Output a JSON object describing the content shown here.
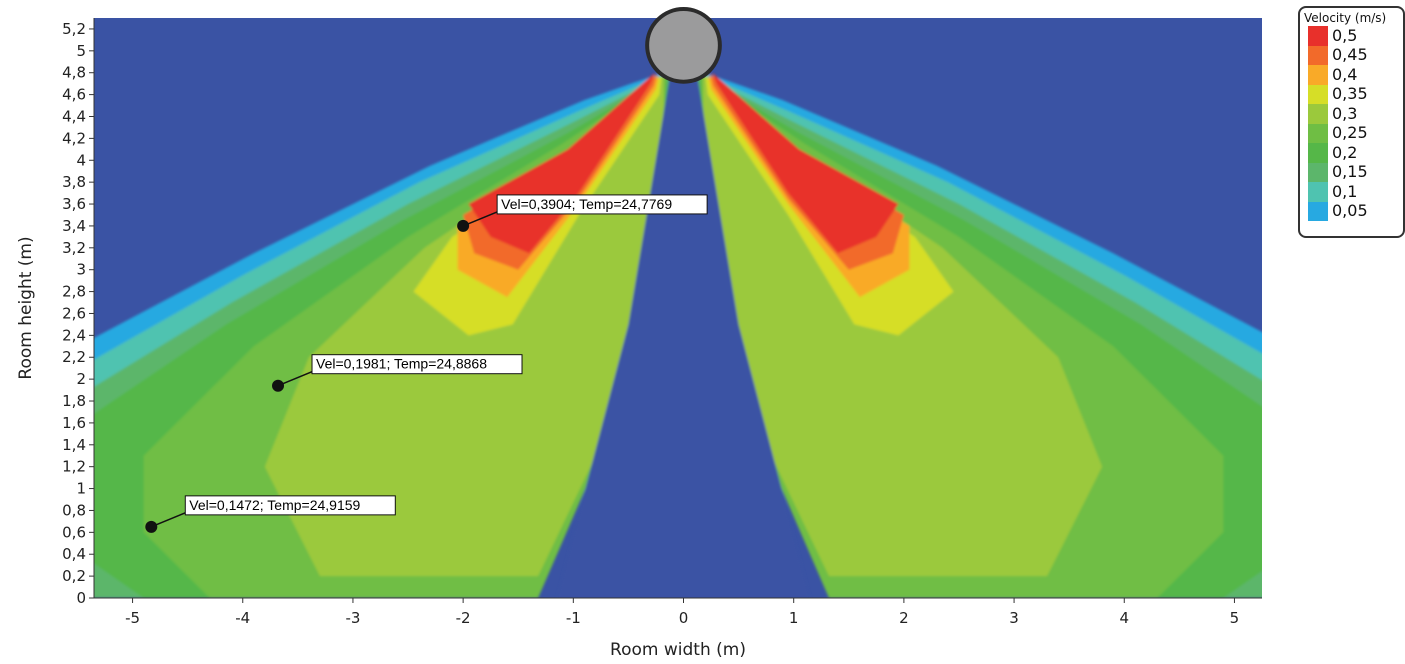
{
  "chart_data": {
    "type": "heatmap",
    "title": "",
    "xlabel": "Room width (m)",
    "ylabel": "Room height (m)",
    "xlim": [
      -5.35,
      5.25
    ],
    "ylim": [
      0,
      5.3
    ],
    "x_ticks": [
      "-5",
      "-4",
      "-3",
      "-2",
      "-1",
      "0",
      "1",
      "2",
      "3",
      "4",
      "5"
    ],
    "y_ticks": [
      "0",
      "0,2",
      "0,4",
      "0,6",
      "0,8",
      "1",
      "1,2",
      "1,4",
      "1,6",
      "1,8",
      "2",
      "2,2",
      "2,4",
      "2,6",
      "2,8",
      "3",
      "3,2",
      "3,4",
      "3,6",
      "3,8",
      "4",
      "4,2",
      "4,4",
      "4,6",
      "4,8",
      "5",
      "5,2"
    ],
    "field_quantity": "velocity",
    "field_units": "m/s",
    "source": {
      "x": 0,
      "y": 5.05,
      "radius": 0.33,
      "color": "#9b9b9c"
    },
    "background_color": "#3a53a4",
    "legend": {
      "title": "Velocity (m/s)",
      "placement": "top-right",
      "entries": [
        {
          "label": "0,5",
          "color": "#e8302b"
        },
        {
          "label": "0,45",
          "color": "#f26a2a"
        },
        {
          "label": "0,4",
          "color": "#f9aa28"
        },
        {
          "label": "0,35",
          "color": "#d6de27"
        },
        {
          "label": "0,3",
          "color": "#9bc93c"
        },
        {
          "label": "0,25",
          "color": "#6fbe44"
        },
        {
          "label": "0,2",
          "color": "#55b748"
        },
        {
          "label": "0,15",
          "color": "#5cb66b"
        },
        {
          "label": "0,1",
          "color": "#4fc3b0"
        },
        {
          "label": "0,05",
          "color": "#27a9e1"
        }
      ]
    },
    "annotations": [
      {
        "x": -2.0,
        "y": 3.4,
        "vel": 0.3904,
        "temp": 24.7769,
        "text": "Vel=0,3904; Temp=24,7769"
      },
      {
        "x": -3.68,
        "y": 1.94,
        "vel": 0.1981,
        "temp": 24.8868,
        "text": "Vel=0,1981; Temp=24,8868"
      },
      {
        "x": -4.83,
        "y": 0.65,
        "vel": 0.1472,
        "temp": 24.9159,
        "text": "Vel=0,1472; Temp=24,9159"
      }
    ]
  }
}
